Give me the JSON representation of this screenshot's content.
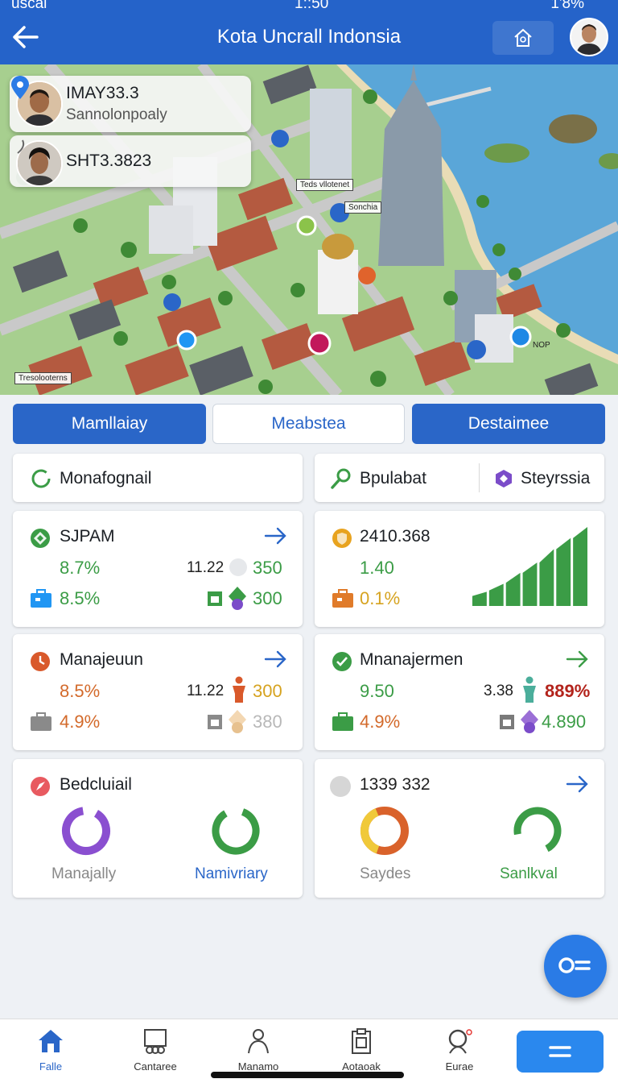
{
  "status_bar": {
    "carrier": "uscal",
    "time": "1::50",
    "battery": "1'8%"
  },
  "header": {
    "title": "Kota Uncrall Indonsia",
    "back_icon": "arrow-left-icon",
    "home_icon": "home-icon"
  },
  "map": {
    "users": [
      {
        "name": "IMAY33.3",
        "subtitle": "Sannolonpoaly"
      },
      {
        "name": "SHT3.3823",
        "subtitle": ""
      }
    ],
    "labels": [
      "Teds vllotenet",
      "Sonchia",
      "Tresolooterns",
      "NOP"
    ]
  },
  "tabs": [
    "Mamllaiay",
    "Meabstea",
    "Destaimee"
  ],
  "filters": {
    "left": "Monafognail",
    "right_a": "Bpulabat",
    "right_b": "Steyrssia"
  },
  "cards": {
    "c1": {
      "title": "SJPAM",
      "r1_val": "8.7%",
      "r1_num": "11.22",
      "r1_right": "350",
      "r2_val": "8.5%",
      "r2_right": "300"
    },
    "c2": {
      "title": "2410.368",
      "r1_val": "1.40",
      "r2_val": "0.1%",
      "bar_levels": [
        0.18,
        0.28,
        0.42,
        0.55,
        0.72,
        0.86,
        1.0
      ]
    },
    "c3": {
      "title": "Manajeuun",
      "r1_val": "8.5%",
      "r1_num": "11.22",
      "r1_right": "300",
      "r2_val": "4.9%",
      "r2_right": "380"
    },
    "c4": {
      "title": "Mnanajermen",
      "r1_val": "9.50",
      "r1_num": "3.38",
      "r1_right": "889%",
      "r2_val": "4.9%",
      "r2_right": "4.890"
    },
    "c5": {
      "title": "Bedcluiail",
      "donut1_label": "Manajally",
      "donut2_label": "Namivriary"
    },
    "c6": {
      "title": "1339 332",
      "donut1_label": "Saydes",
      "donut2_label": "Sanlkval"
    }
  },
  "nav": [
    "Falle",
    "Cantaree",
    "Manamo",
    "Aotaoak",
    "Eurae"
  ],
  "colors": {
    "primary": "#2563c9",
    "accent_green": "#3b9c46",
    "accent_orange": "#d36a2b",
    "accent_purple": "#7b4cc9"
  }
}
